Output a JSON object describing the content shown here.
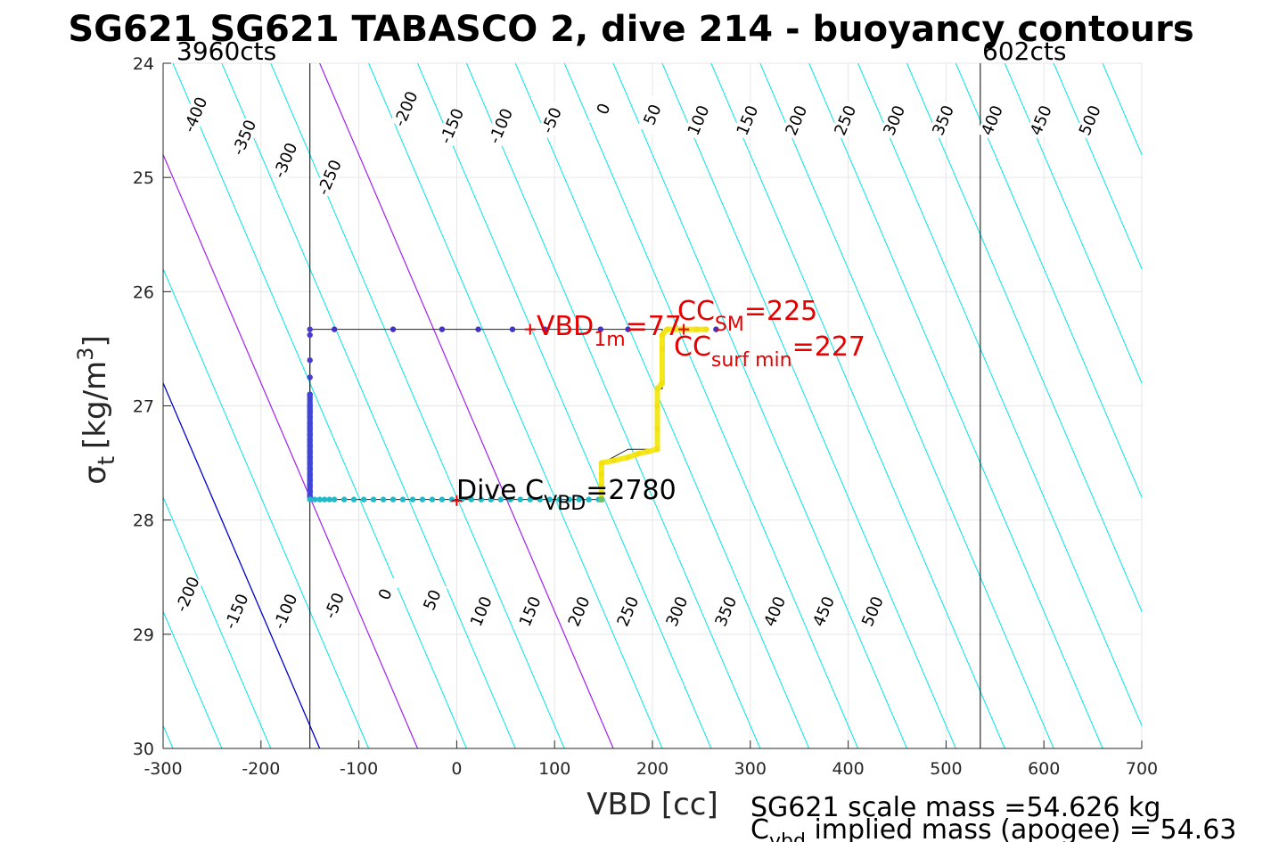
{
  "chart_data": {
    "type": "line",
    "title": "SG621 SG621 TABASCO 2, dive 214 - buoyancy contours",
    "xlabel": "VBD [cc]",
    "ylabel_main": "σ",
    "ylabel_sub": "t",
    "ylabel_unit": "[kg/m",
    "ylabel_sup": "3",
    "ylabel_end": "]",
    "xlim": [
      -300,
      700
    ],
    "ylim": [
      24,
      30
    ],
    "y_reversed": true,
    "grid": true,
    "xticks": [
      -300,
      -200,
      -100,
      0,
      100,
      200,
      300,
      400,
      500,
      600,
      700
    ],
    "yticks": [
      24,
      25,
      26,
      27,
      28,
      29,
      30
    ],
    "counts_left": {
      "x": -150,
      "label": "3960cts"
    },
    "counts_right": {
      "x": 535,
      "label": "602cts"
    },
    "contour_line_xbottom": [
      -290,
      -240,
      -190,
      -140,
      -90,
      -40,
      10,
      60,
      110,
      160,
      210,
      260,
      310,
      360,
      410,
      460,
      510,
      560,
      610,
      660,
      710,
      760,
      810,
      860,
      910,
      960,
      1010,
      1060,
      1110
    ],
    "contour_slope_cc_per_sigma": 50.0,
    "contour_colors": {
      "default": "#00e5e5",
      "zero": "#0000cd",
      "highlight": "#a020f0"
    },
    "highlight_x_at_30": [
      -40,
      160
    ],
    "zero_x_at_30": -140,
    "top_labels": [
      {
        "text": "-400",
        "x": -267,
        "y": 24.45
      },
      {
        "text": "-350",
        "x": -217,
        "y": 24.65
      },
      {
        "text": "-300",
        "x": -175,
        "y": 24.85
      },
      {
        "text": "-250",
        "x": -130,
        "y": 25.0
      },
      {
        "text": "-200",
        "x": -52,
        "y": 24.4
      },
      {
        "text": "-150",
        "x": -5,
        "y": 24.55
      },
      {
        "text": "-100",
        "x": 45,
        "y": 24.55
      },
      {
        "text": "-50",
        "x": 97,
        "y": 24.5
      },
      {
        "text": "0",
        "x": 150,
        "y": 24.4
      },
      {
        "text": "50",
        "x": 200,
        "y": 24.45
      },
      {
        "text": "100",
        "x": 247,
        "y": 24.5
      },
      {
        "text": "150",
        "x": 297,
        "y": 24.5
      },
      {
        "text": "200",
        "x": 347,
        "y": 24.5
      },
      {
        "text": "250",
        "x": 397,
        "y": 24.5
      },
      {
        "text": "300",
        "x": 447,
        "y": 24.5
      },
      {
        "text": "350",
        "x": 497,
        "y": 24.5
      },
      {
        "text": "400",
        "x": 547,
        "y": 24.5
      },
      {
        "text": "450",
        "x": 597,
        "y": 24.5
      },
      {
        "text": "500",
        "x": 647,
        "y": 24.5
      }
    ],
    "bottom_labels": [
      {
        "text": "-200",
        "x": -275,
        "y": 28.65
      },
      {
        "text": "-150",
        "x": -225,
        "y": 28.8
      },
      {
        "text": "-100",
        "x": -175,
        "y": 28.8
      },
      {
        "text": "-50",
        "x": -125,
        "y": 28.75
      },
      {
        "text": "0",
        "x": -73,
        "y": 28.65
      },
      {
        "text": "50",
        "x": -25,
        "y": 28.7
      },
      {
        "text": "100",
        "x": 25,
        "y": 28.8
      },
      {
        "text": "150",
        "x": 75,
        "y": 28.8
      },
      {
        "text": "200",
        "x": 125,
        "y": 28.8
      },
      {
        "text": "250",
        "x": 175,
        "y": 28.8
      },
      {
        "text": "300",
        "x": 225,
        "y": 28.8
      },
      {
        "text": "350",
        "x": 275,
        "y": 28.8
      },
      {
        "text": "400",
        "x": 325,
        "y": 28.8
      },
      {
        "text": "450",
        "x": 375,
        "y": 28.8
      },
      {
        "text": "500",
        "x": 425,
        "y": 28.8
      }
    ],
    "track_line": [
      [
        -150,
        27.82
      ],
      [
        -150,
        26.33
      ],
      [
        210,
        26.33
      ],
      [
        210,
        26.7
      ],
      [
        210,
        26.85
      ],
      [
        205,
        26.85
      ],
      [
        205,
        27.38
      ],
      [
        175,
        27.38
      ],
      [
        160,
        27.45
      ],
      [
        148,
        27.5
      ],
      [
        148,
        27.82
      ],
      [
        -150,
        27.82
      ]
    ],
    "dive_points": [
      [
        -150,
        26.33
      ],
      [
        -150,
        26.38
      ],
      [
        -150,
        26.6
      ],
      [
        -150,
        26.75
      ],
      [
        -150,
        26.9
      ],
      [
        -150,
        27.0
      ],
      [
        -150,
        27.05
      ],
      [
        -150,
        27.1
      ],
      [
        -150,
        27.15
      ],
      [
        -150,
        27.2
      ],
      [
        -150,
        27.25
      ],
      [
        -150,
        27.3
      ],
      [
        -150,
        27.35
      ],
      [
        -150,
        27.4
      ],
      [
        -150,
        27.45
      ],
      [
        -150,
        27.5
      ],
      [
        -150,
        27.55
      ],
      [
        -150,
        27.6
      ],
      [
        -150,
        27.65
      ],
      [
        -150,
        27.7
      ],
      [
        -150,
        27.75
      ],
      [
        -150,
        27.8
      ]
    ],
    "climb_surface_points": [
      [
        -125,
        26.33
      ],
      [
        -65,
        26.33
      ],
      [
        -15,
        26.33
      ],
      [
        22,
        26.33
      ],
      [
        57,
        26.33
      ],
      [
        90,
        26.33
      ],
      [
        147,
        26.33
      ],
      [
        175,
        26.33
      ],
      [
        265,
        26.33
      ]
    ],
    "bottom_points_x": [
      -150,
      -145,
      -140,
      -135,
      -130,
      -125,
      -115,
      -105,
      -95,
      -85,
      -75,
      -65,
      -55,
      -45,
      -35,
      -25,
      -15,
      -5,
      5,
      15,
      25,
      35,
      45,
      55,
      65,
      75,
      85,
      95,
      105,
      115,
      125,
      135,
      145
    ],
    "bottom_points_y": 27.82,
    "climb_yellow": [
      [
        148,
        27.82
      ],
      [
        148,
        27.7
      ],
      [
        148,
        27.6
      ],
      [
        148,
        27.5
      ],
      [
        160,
        27.48
      ],
      [
        175,
        27.45
      ],
      [
        185,
        27.42
      ],
      [
        195,
        27.4
      ],
      [
        205,
        27.38
      ],
      [
        205,
        27.2
      ],
      [
        205,
        27.0
      ],
      [
        205,
        26.85
      ],
      [
        210,
        26.8
      ],
      [
        210,
        26.5
      ],
      [
        210,
        26.38
      ],
      [
        215,
        26.33
      ],
      [
        230,
        26.33
      ],
      [
        245,
        26.33
      ],
      [
        255,
        26.33
      ]
    ],
    "markers": [
      {
        "name": "vbd-1m",
        "x": 75,
        "y": 26.33
      },
      {
        "name": "cc-sm",
        "x": 232,
        "y": 26.33
      },
      {
        "name": "dive-cvbd",
        "x": 0,
        "y": 27.83
      }
    ],
    "annotations": {
      "vbd_main": "VBD",
      "vbd_sub": "1m",
      "vbd_value": "=77",
      "ccsm_main": "CC",
      "ccsm_sub": "SM",
      "ccsm_value": "=225",
      "ccsurf_main": "CC",
      "ccsurf_sub": "surf min",
      "ccsurf_value": "=227",
      "dive_main": "Dive C",
      "dive_sub": "VBD",
      "dive_value": "=2780"
    }
  },
  "footer": {
    "scale_mass": "SG621 scale mass =54.626 kg",
    "implied_main": "C",
    "implied_sub": "vbd",
    "implied_rest": " implied mass (apogee) = 54.63"
  }
}
